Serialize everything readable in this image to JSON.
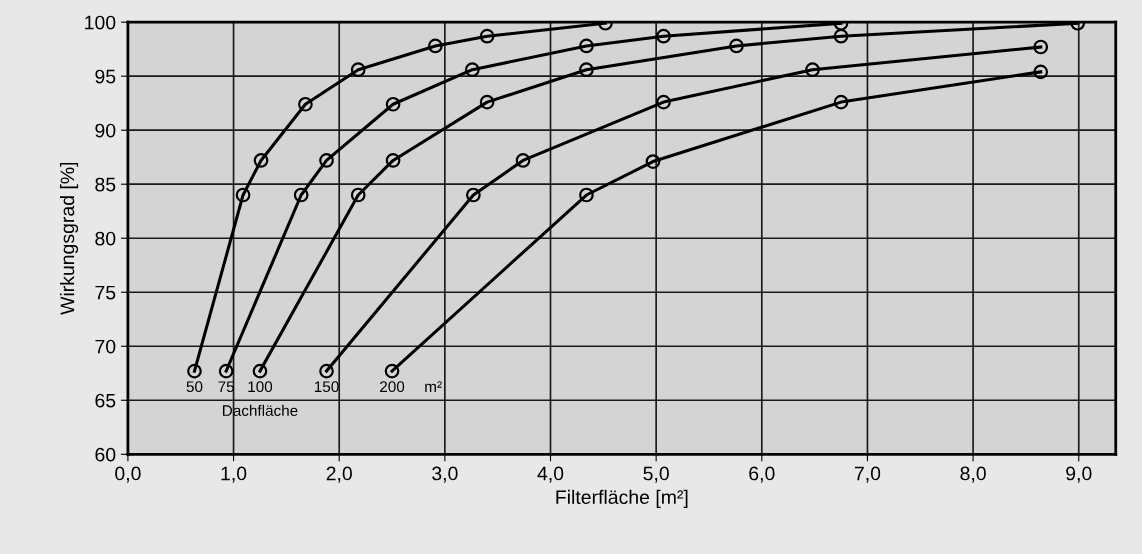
{
  "chart_data": {
    "type": "line",
    "xlabel": "Filterfläche [m²]",
    "ylabel": "Wirkungsgrad [%]",
    "xlim": [
      0,
      9.35
    ],
    "ylim": [
      60,
      100
    ],
    "xticks": [
      {
        "value": 0,
        "label": "0,0"
      },
      {
        "value": 1,
        "label": "1,0"
      },
      {
        "value": 2,
        "label": "2,0"
      },
      {
        "value": 3,
        "label": "3,0"
      },
      {
        "value": 4,
        "label": "4,0"
      },
      {
        "value": 5,
        "label": "5,0"
      },
      {
        "value": 6,
        "label": "6,0"
      },
      {
        "value": 7,
        "label": "7,0"
      },
      {
        "value": 8,
        "label": "8,0"
      },
      {
        "value": 9,
        "label": "9,0"
      }
    ],
    "yticks": [
      60,
      65,
      70,
      75,
      80,
      85,
      90,
      95,
      100
    ],
    "grid": true,
    "marker": "circle",
    "line_style": "solid",
    "annotations": [
      "m²",
      "Dachfläche"
    ],
    "series": [
      {
        "name": "50",
        "color": "#000000",
        "x": [
          0.63,
          1.09,
          1.26,
          1.68,
          2.18,
          2.91,
          3.4,
          4.52
        ],
        "values": [
          67.7,
          84.0,
          87.2,
          92.4,
          95.6,
          97.8,
          98.7,
          99.9
        ]
      },
      {
        "name": "75",
        "color": "#000000",
        "x": [
          0.93,
          1.64,
          1.88,
          2.51,
          3.26,
          4.34,
          5.07,
          6.75
        ],
        "values": [
          67.7,
          84.0,
          87.2,
          92.4,
          95.6,
          97.8,
          98.7,
          99.9
        ]
      },
      {
        "name": "100",
        "color": "#000000",
        "x": [
          1.25,
          2.18,
          2.51,
          3.4,
          4.34,
          5.76,
          6.75,
          8.99
        ],
        "values": [
          67.7,
          84.0,
          87.2,
          92.6,
          95.6,
          97.8,
          98.7,
          99.9
        ]
      },
      {
        "name": "150",
        "color": "#000000",
        "x": [
          1.88,
          3.27,
          3.74,
          5.07,
          6.48,
          8.64
        ],
        "values": [
          67.7,
          84.0,
          87.2,
          92.6,
          95.6,
          97.7
        ]
      },
      {
        "name": "200",
        "color": "#000000",
        "x": [
          2.5,
          4.34,
          4.97,
          6.75,
          8.64
        ],
        "values": [
          67.7,
          84.0,
          87.1,
          92.6,
          95.4
        ]
      }
    ]
  }
}
